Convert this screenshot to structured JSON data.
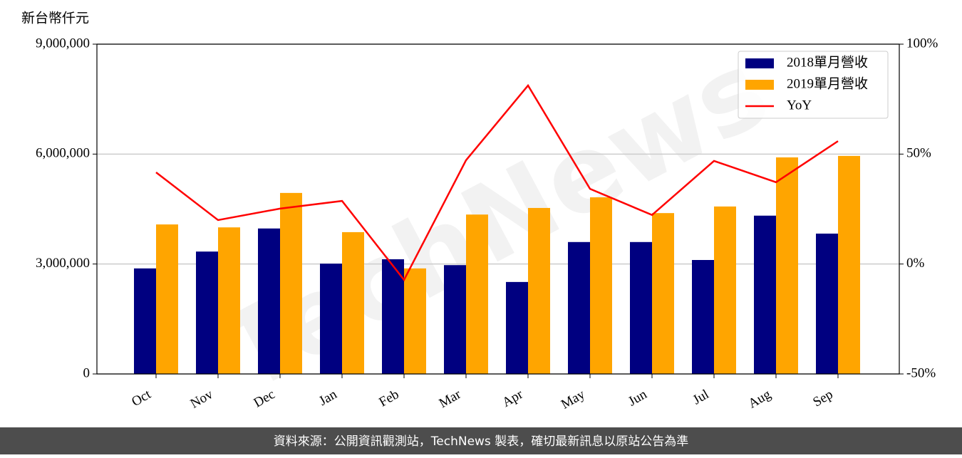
{
  "chart_data": {
    "type": "bar",
    "y_label": "新台幣仟元",
    "watermark": "TechNews",
    "footer": "資料來源：公開資訊觀測站，TechNews 製表，確切最新訊息以原站公告為準",
    "categories": [
      "Oct",
      "Nov",
      "Dec",
      "Jan",
      "Feb",
      "Mar",
      "Apr",
      "May",
      "Jun",
      "Jul",
      "Aug",
      "Sep"
    ],
    "series": [
      {
        "name": "2018單月營收",
        "color": "#000080",
        "values": [
          2880000,
          3340000,
          3970000,
          3010000,
          3130000,
          2970000,
          2510000,
          3600000,
          3600000,
          3110000,
          4320000,
          3830000
        ]
      },
      {
        "name": "2019單月營收",
        "color": "#ffa500",
        "values": [
          4080000,
          4000000,
          4940000,
          3870000,
          2880000,
          4350000,
          4530000,
          4820000,
          4390000,
          4570000,
          5910000,
          5950000
        ]
      },
      {
        "name": "YoY",
        "type": "line",
        "axis": "y2",
        "color": "#ff0000",
        "values": [
          41.7,
          20.0,
          25.2,
          28.7,
          -7.2,
          47.2,
          81.2,
          34.2,
          22.3,
          46.9,
          37.2,
          55.9
        ]
      }
    ],
    "ylim": [
      0,
      9000000
    ],
    "yticks": [
      0,
      {
        "value": 3000000,
        "label": "3,000,000"
      },
      {
        "value": 6000000,
        "label": "6,000,000"
      },
      {
        "value": 9000000,
        "label": "9,000,000"
      }
    ],
    "y2lim": [
      -50,
      100
    ],
    "y2ticks": [
      {
        "value": -50,
        "label": "-50%"
      },
      {
        "value": 0,
        "label": "0%"
      },
      {
        "value": 50,
        "label": "50%"
      },
      {
        "value": 100,
        "label": "100%"
      }
    ],
    "grid": true,
    "legend": "upper right"
  }
}
